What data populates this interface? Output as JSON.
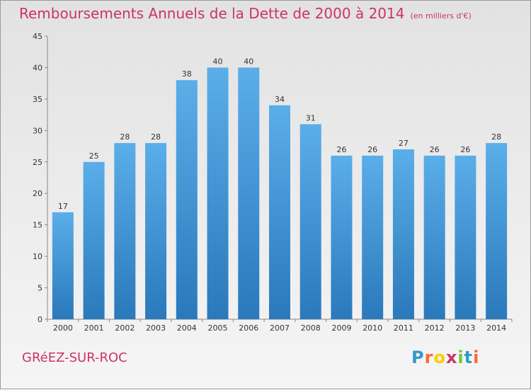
{
  "header": {
    "title": "Remboursements Annuels de la Dette de 2000 à 2014",
    "unit": "(en milliers d'€)"
  },
  "footer": {
    "commune": "GRéEZ-SUR-ROC",
    "logo_letters": [
      "P",
      "r",
      "o",
      "x",
      "i",
      "t",
      "i"
    ],
    "logo_colors": [
      "#3399cc",
      "#ff6633",
      "#ffcc00",
      "#cc3366",
      "#66cc33",
      "#3399cc",
      "#ff6633"
    ]
  },
  "chart_data": {
    "type": "bar",
    "title": "Remboursements Annuels de la Dette de 2000 à 2014",
    "categories": [
      "2000",
      "2001",
      "2002",
      "2003",
      "2004",
      "2005",
      "2006",
      "2007",
      "2008",
      "2009",
      "2010",
      "2011",
      "2012",
      "2013",
      "2014"
    ],
    "values": [
      17,
      25,
      28,
      28,
      38,
      40,
      40,
      34,
      31,
      26,
      26,
      27,
      26,
      26,
      28
    ],
    "ylim": [
      0,
      45
    ],
    "yticks": [
      0,
      5,
      10,
      15,
      20,
      25,
      30,
      35,
      40,
      45
    ],
    "grid": false,
    "colors": {
      "bar_top": "#5aaee9",
      "bar_bottom": "#2a79bb",
      "axis": "#888888"
    }
  }
}
